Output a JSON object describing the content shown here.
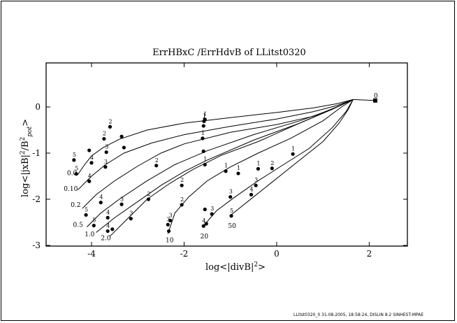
{
  "footer": "LLitst0320_0     31.08.2005, 18:58:24, DISLIN 8.2 SINHEST-MPAE",
  "chart_data": {
    "type": "line",
    "title": "ErrHBxC /ErrHdvB  of LLitst0320",
    "xlabel": "log<|divB|²>",
    "ylabel": "log<|jxB|²/B²pot>",
    "xlim": [
      -5,
      2.5
    ],
    "ylim": [
      -3,
      0.5
    ],
    "xticks": [
      -4,
      -2,
      0,
      2
    ],
    "yticks": [
      0,
      -1,
      -2,
      -3
    ],
    "grid": false,
    "end_point": {
      "x": 2.13,
      "y": 0.14,
      "label": "0"
    },
    "series": [
      {
        "name": "0.0",
        "label_pos": [
          -4.53,
          -1.48
        ],
        "points": [
          [
            -4.3,
            -1.47
          ],
          [
            -4.15,
            -1.25
          ],
          [
            -4.0,
            -1.06
          ],
          [
            -3.75,
            -0.88
          ],
          [
            -3.4,
            -0.7
          ],
          [
            -2.8,
            -0.5
          ],
          [
            -2,
            -0.35
          ],
          [
            -1,
            -0.23
          ],
          [
            0,
            -0.12
          ],
          [
            0.8,
            -0.02
          ],
          [
            1.3,
            0.07
          ],
          [
            1.65,
            0.16
          ],
          [
            2.13,
            0.14
          ]
        ],
        "markers": [
          {
            "x": -4.38,
            "y": -1.15,
            "label": "5"
          },
          {
            "x": -4.05,
            "y": -0.94,
            "label": ""
          },
          {
            "x": -3.73,
            "y": -0.69,
            "label": "2"
          },
          {
            "x": -3.6,
            "y": -0.43,
            "label": "2"
          }
        ]
      },
      {
        "name": "0.10",
        "label_pos": [
          -4.6,
          -1.82
        ],
        "points": [
          [
            -4.3,
            -1.8
          ],
          [
            -4.0,
            -1.5
          ],
          [
            -3.7,
            -1.25
          ],
          [
            -3.3,
            -1.0
          ],
          [
            -2.7,
            -0.78
          ],
          [
            -2,
            -0.6
          ],
          [
            -1,
            -0.42
          ],
          [
            0,
            -0.26
          ],
          [
            0.8,
            -0.1
          ],
          [
            1.3,
            0.03
          ],
          [
            1.65,
            0.16
          ]
        ],
        "markers": [
          {
            "x": -4.33,
            "y": -1.45,
            "label": "5"
          },
          {
            "x": -4.0,
            "y": -1.21,
            "label": "4"
          },
          {
            "x": -3.68,
            "y": -0.98,
            "label": "3"
          },
          {
            "x": -3.35,
            "y": -0.64,
            "label": ""
          },
          {
            "x": -1.55,
            "y": -0.27,
            "label": "1"
          }
        ]
      },
      {
        "name": "0.2",
        "label_pos": [
          -4.45,
          -2.17
        ],
        "points": [
          [
            -4.2,
            -2.2
          ],
          [
            -3.9,
            -1.9
          ],
          [
            -3.5,
            -1.6
          ],
          [
            -3.0,
            -1.28
          ],
          [
            -2.5,
            -1.0
          ],
          [
            -2,
            -0.8
          ],
          [
            -1,
            -0.55
          ],
          [
            0,
            -0.38
          ],
          [
            0.8,
            -0.2
          ],
          [
            1.3,
            0.0
          ],
          [
            1.65,
            0.16
          ]
        ],
        "markers": [
          {
            "x": -4.05,
            "y": -1.61,
            "label": "4"
          },
          {
            "x": -3.7,
            "y": -1.3,
            "label": "3"
          },
          {
            "x": -3.3,
            "y": -0.88,
            "label": ""
          },
          {
            "x": -1.57,
            "y": -0.31,
            "label": "1"
          }
        ]
      },
      {
        "name": "0.5",
        "label_pos": [
          -4.4,
          -2.6
        ],
        "points": [
          [
            -4.1,
            -2.6
          ],
          [
            -3.8,
            -2.3
          ],
          [
            -3.4,
            -2.0
          ],
          [
            -2.8,
            -1.6
          ],
          [
            -2.2,
            -1.25
          ],
          [
            -1.5,
            -0.95
          ],
          [
            -0.5,
            -0.6
          ],
          [
            0.5,
            -0.3
          ],
          [
            1.2,
            -0.05
          ],
          [
            1.65,
            0.16
          ]
        ],
        "markers": [
          {
            "x": -4.12,
            "y": -2.34,
            "label": "5"
          },
          {
            "x": -3.8,
            "y": -2.07,
            "label": "4"
          },
          {
            "x": -3.35,
            "y": -2.11,
            "label": "3"
          },
          {
            "x": -2.6,
            "y": -1.27,
            "label": "2"
          },
          {
            "x": -1.58,
            "y": -0.41,
            "label": "1"
          }
        ]
      },
      {
        "name": "1.0",
        "label_pos": [
          -4.15,
          -2.8
        ],
        "points": [
          [
            -3.9,
            -2.72
          ],
          [
            -3.5,
            -2.4
          ],
          [
            -3.0,
            -2.05
          ],
          [
            -2.5,
            -1.7
          ],
          [
            -2,
            -1.4
          ],
          [
            -1.5,
            -1.15
          ],
          [
            -0.5,
            -0.72
          ],
          [
            0.5,
            -0.35
          ],
          [
            1.2,
            -0.05
          ],
          [
            1.65,
            0.16
          ]
        ],
        "markers": [
          {
            "x": -3.95,
            "y": -2.57,
            "label": "5"
          },
          {
            "x": -3.65,
            "y": -2.4,
            "label": "4"
          },
          {
            "x": -3.15,
            "y": -2.42,
            "label": "3"
          },
          {
            "x": -2.05,
            "y": -1.7,
            "label": "2"
          },
          {
            "x": -1.6,
            "y": -0.68,
            "label": "1"
          }
        ]
      },
      {
        "name": "2.0",
        "label_pos": [
          -3.8,
          -2.89
        ],
        "points": [
          [
            -3.6,
            -2.8
          ],
          [
            -3.2,
            -2.4
          ],
          [
            -2.8,
            -2.0
          ],
          [
            -2.3,
            -1.65
          ],
          [
            -1.8,
            -1.35
          ],
          [
            -1.2,
            -1.05
          ],
          [
            -0.4,
            -0.75
          ],
          [
            0.5,
            -0.35
          ],
          [
            1.2,
            -0.05
          ],
          [
            1.65,
            0.16
          ]
        ],
        "markers": [
          {
            "x": -3.65,
            "y": -2.69,
            "label": "4"
          },
          {
            "x": -3.55,
            "y": -2.65,
            "label": ""
          },
          {
            "x": -2.77,
            "y": -2.0,
            "label": "2"
          },
          {
            "x": -1.58,
            "y": -0.96,
            "label": ""
          }
        ]
      },
      {
        "name": "10",
        "label_pos": [
          -2.4,
          -2.93
        ],
        "points": [
          [
            -2.35,
            -2.75
          ],
          [
            -2.2,
            -2.3
          ],
          [
            -1.9,
            -1.95
          ],
          [
            -1.5,
            -1.6
          ],
          [
            -1.0,
            -1.3
          ],
          [
            -0.4,
            -1.0
          ],
          [
            0.3,
            -0.68
          ],
          [
            1.0,
            -0.3
          ],
          [
            1.4,
            0.0
          ],
          [
            1.65,
            0.16
          ]
        ],
        "markers": [
          {
            "x": -2.33,
            "y": -2.69,
            "label": ""
          },
          {
            "x": -2.35,
            "y": -2.55,
            "label": "3"
          },
          {
            "x": -2.3,
            "y": -2.46,
            "label": "3"
          },
          {
            "x": -2.05,
            "y": -2.12,
            "label": "2"
          },
          {
            "x": -1.55,
            "y": -1.25,
            "label": "1"
          },
          {
            "x": -1.1,
            "y": -1.39,
            "label": "1"
          }
        ]
      },
      {
        "name": "20",
        "label_pos": [
          -1.65,
          -2.85
        ],
        "points": [
          [
            -1.6,
            -2.6
          ],
          [
            -1.3,
            -2.25
          ],
          [
            -0.9,
            -1.95
          ],
          [
            -0.4,
            -1.6
          ],
          [
            0.1,
            -1.28
          ],
          [
            0.7,
            -0.9
          ],
          [
            1.2,
            -0.45
          ],
          [
            1.5,
            -0.1
          ],
          [
            1.65,
            0.16
          ]
        ],
        "markers": [
          {
            "x": -1.58,
            "y": -2.58,
            "label": "4"
          },
          {
            "x": -1.52,
            "y": -2.53,
            "label": ""
          },
          {
            "x": -1.55,
            "y": -2.22,
            "label": ""
          },
          {
            "x": -1.0,
            "y": -1.95,
            "label": "3"
          },
          {
            "x": -0.83,
            "y": -1.44,
            "label": "1"
          },
          {
            "x": -0.4,
            "y": -1.34,
            "label": "1"
          }
        ]
      },
      {
        "name": "50",
        "label_pos": [
          -1.05,
          -2.62
        ],
        "points": [
          [
            -1.0,
            -2.35
          ],
          [
            -0.5,
            -1.95
          ],
          [
            0.0,
            -1.55
          ],
          [
            0.5,
            -1.15
          ],
          [
            1.0,
            -0.75
          ],
          [
            1.35,
            -0.35
          ],
          [
            1.55,
            -0.05
          ],
          [
            1.65,
            0.16
          ]
        ],
        "markers": [
          {
            "x": -1.4,
            "y": -2.32,
            "label": "3"
          },
          {
            "x": -0.98,
            "y": -2.36,
            "label": "5"
          },
          {
            "x": -0.55,
            "y": -1.9,
            "label": "4"
          },
          {
            "x": -0.45,
            "y": -1.7,
            "label": "3"
          },
          {
            "x": -0.1,
            "y": -1.33,
            "label": "2"
          },
          {
            "x": 0.35,
            "y": -1.02,
            "label": "1"
          }
        ]
      }
    ]
  }
}
